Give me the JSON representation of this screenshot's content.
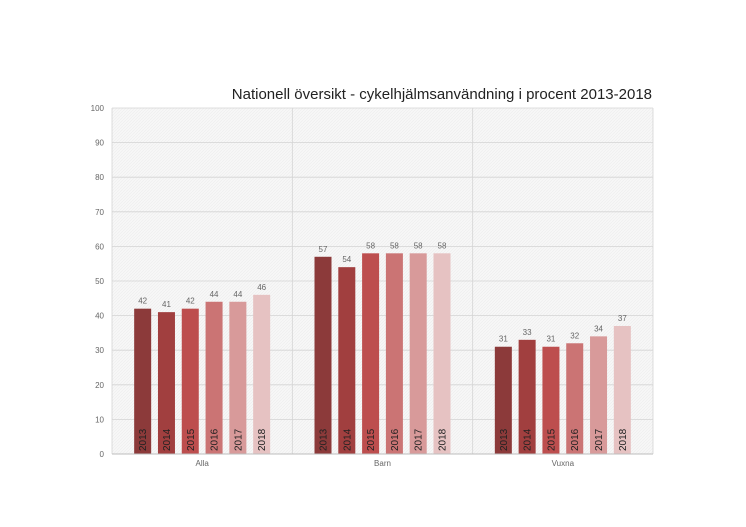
{
  "chart_data": {
    "type": "bar",
    "title": "Nationell översikt - cykelhjälmsanvändning i procent 2013-2018",
    "xlabel": "",
    "ylabel": "",
    "ylim": [
      0,
      100
    ],
    "yticks": [
      0,
      10,
      20,
      30,
      40,
      50,
      60,
      70,
      80,
      90,
      100
    ],
    "grid": true,
    "categories": [
      "Alla",
      "Barn",
      "Vuxna"
    ],
    "series": [
      {
        "name": "2013",
        "color": "#8c3a3a",
        "values": [
          42,
          57,
          31
        ]
      },
      {
        "name": "2014",
        "color": "#a13f3f",
        "values": [
          41,
          54,
          33
        ]
      },
      {
        "name": "2015",
        "color": "#bd4e4e",
        "values": [
          42,
          58,
          31
        ]
      },
      {
        "name": "2016",
        "color": "#cb7474",
        "values": [
          44,
          58,
          32
        ]
      },
      {
        "name": "2017",
        "color": "#d89a9a",
        "values": [
          44,
          58,
          34
        ]
      },
      {
        "name": "2018",
        "color": "#e6c2c2",
        "values": [
          46,
          58,
          37
        ]
      }
    ]
  }
}
